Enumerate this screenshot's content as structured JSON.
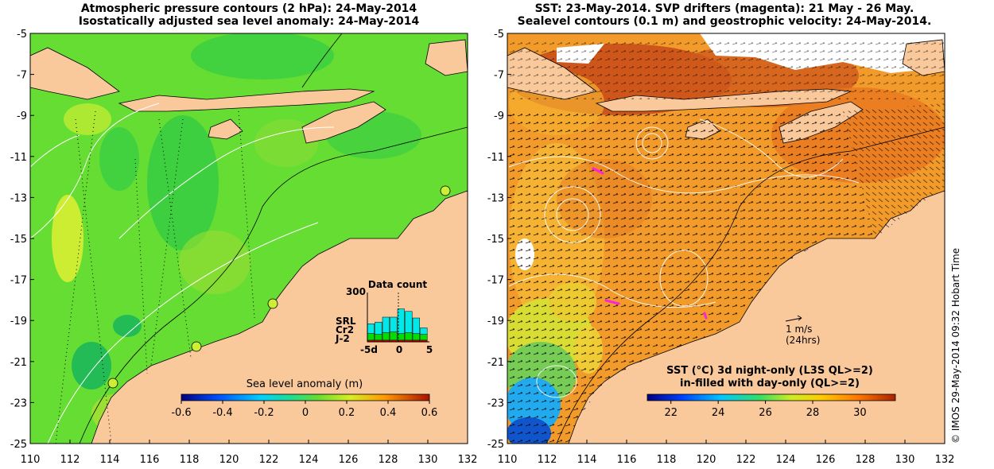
{
  "left_panel": {
    "title_line1": "Atmospheric pressure contours (2 hPa): 24-May-2014",
    "title_line2": "Isostatically adjusted sea level anomaly: 24-May-2014",
    "colorbar_title": "Sea level anomaly (m)",
    "colorbar_ticks": [
      "-0.6",
      "-0.4",
      "-0.2",
      "0",
      "0.2",
      "0.4",
      "0.6"
    ],
    "colorbar_range": [
      -0.6,
      0.6
    ],
    "inset": {
      "title": "Data count",
      "ymax_label": "300",
      "xlabels": [
        "-5d",
        "0",
        "5"
      ],
      "legend": [
        {
          "label": "SRL",
          "color": "#00e8e8"
        },
        {
          "label": "Cr2",
          "color": "#00dd00"
        },
        {
          "label": "J-2",
          "color": "#ee0000"
        }
      ],
      "bars": [
        {
          "j2": 10,
          "cr2": 40,
          "srl": 60
        },
        {
          "j2": 10,
          "cr2": 35,
          "srl": 75
        },
        {
          "j2": 10,
          "cr2": 45,
          "srl": 95
        },
        {
          "j2": 10,
          "cr2": 50,
          "srl": 90
        },
        {
          "j2": 10,
          "cr2": 40,
          "srl": 150
        },
        {
          "j2": 10,
          "cr2": 45,
          "srl": 130
        },
        {
          "j2": 10,
          "cr2": 40,
          "srl": 95
        },
        {
          "j2": 10,
          "cr2": 35,
          "srl": 40
        }
      ]
    }
  },
  "right_panel": {
    "title_line1": "SST: 23-May-2014. SVP drifters (magenta): 21 May - 26 May.",
    "title_line2": "Sealevel contours (0.1 m) and geostrophic velocity: 24-May-2014.",
    "colorbar_title_line1": "SST (°C)  3d night-only (L3S QL>=2)",
    "colorbar_title_line2": "in-filled with day-only (QL>=2)",
    "colorbar_ticks": [
      "22",
      "24",
      "26",
      "28",
      "30"
    ],
    "colorbar_range": [
      21,
      31.5
    ],
    "velocity_label": "1 m/s",
    "velocity_sublabel": "(24hrs)"
  },
  "axes": {
    "x_ticks": [
      "110",
      "112",
      "114",
      "116",
      "118",
      "120",
      "122",
      "124",
      "126",
      "128",
      "130",
      "132"
    ],
    "y_ticks": [
      "-5",
      "-7",
      "-9",
      "-11",
      "-13",
      "-15",
      "-17",
      "-19",
      "-21",
      "-23",
      "-25"
    ],
    "lon_range": [
      110,
      132
    ],
    "lat_range": [
      -25,
      -5
    ]
  },
  "credit": "© IMOS 29-May-2014 09:32 Hobart Time",
  "colors": {
    "land": "#f9c89b",
    "sea_level_base": "#66dd33",
    "sst_base": "#f29b2a"
  }
}
